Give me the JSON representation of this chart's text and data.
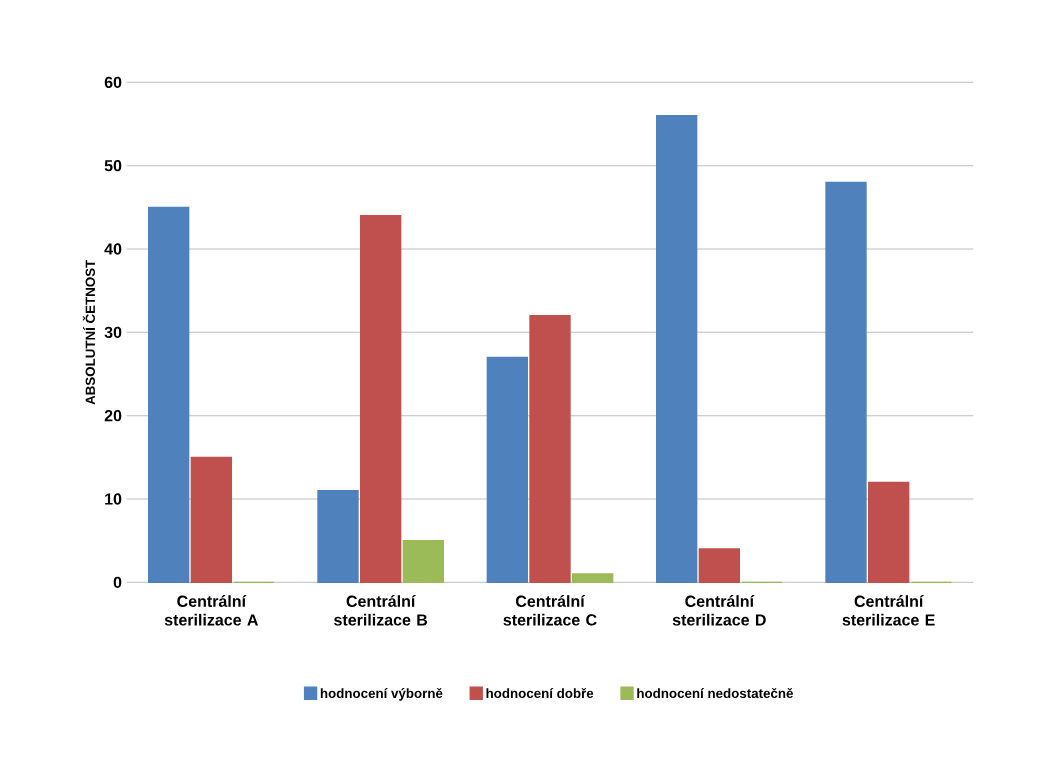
{
  "chart_data": {
    "type": "bar",
    "ylabel": "ABSOLUTNÍ ČETNOST",
    "categories": [
      "Centrální sterilizace A",
      "Centrální sterilizace B",
      "Centrální sterilizace C",
      "Centrální sterilizace D",
      "Centrální sterilizace E"
    ],
    "series": [
      {
        "name": "hodnocení výborně",
        "color": "#4f81bd",
        "values": [
          45,
          11,
          27,
          56,
          48
        ]
      },
      {
        "name": "hodnocení dobře",
        "color": "#c0504d",
        "values": [
          15,
          44,
          32,
          4,
          12
        ]
      },
      {
        "name": "hodnocení nedostatečně",
        "color": "#9bbb59",
        "values": [
          0,
          5,
          1,
          0,
          0
        ]
      }
    ],
    "ylim": [
      0,
      60
    ],
    "yticks": [
      0,
      10,
      20,
      30,
      40,
      50,
      60
    ],
    "grid": "y",
    "legend": "bottom"
  }
}
